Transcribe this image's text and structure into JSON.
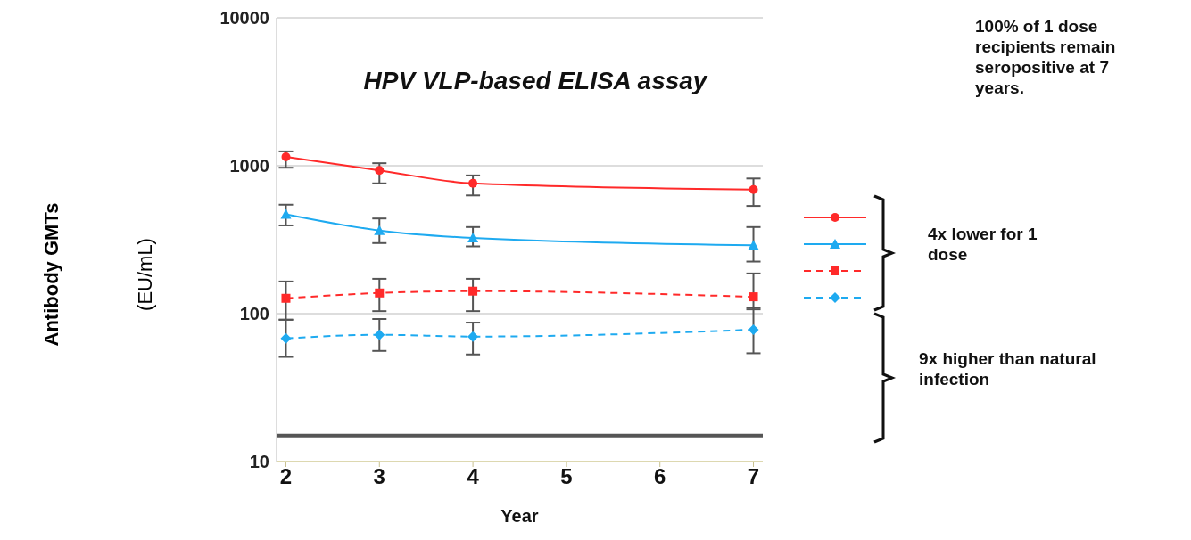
{
  "chart_data": {
    "type": "line",
    "title": "HPV VLP-based ELISA assay",
    "xlabel": "Year",
    "ylabel": "Antibody GMTs\n(EU/mL)",
    "x": [
      2,
      3,
      4,
      7
    ],
    "series": [
      {
        "color": "#ff2a2a",
        "values": [
          1150,
          930,
          760,
          690
        ],
        "errors": [
          [
            970,
            1250
          ],
          [
            760,
            1040
          ],
          [
            630,
            860
          ],
          [
            535,
            820
          ]
        ],
        "marker": "circle",
        "line_style": "solid"
      },
      {
        "color": "#1eaaf0",
        "values": [
          470,
          365,
          325,
          290
        ],
        "errors": [
          [
            395,
            545
          ],
          [
            300,
            440
          ],
          [
            285,
            385
          ],
          [
            225,
            385
          ]
        ],
        "marker": "triangle",
        "line_style": "solid"
      },
      {
        "color": "#ff2a2a",
        "values": [
          127,
          138,
          142,
          130
        ],
        "errors": [
          [
            91,
            165
          ],
          [
            104,
            172
          ],
          [
            104,
            172
          ],
          [
            107,
            187
          ]
        ],
        "marker": "square",
        "line_style": "dashed"
      },
      {
        "color": "#1eaaf0",
        "values": [
          68,
          72,
          70,
          78
        ],
        "errors": [
          [
            51,
            91
          ],
          [
            56,
            92
          ],
          [
            53,
            87
          ],
          [
            54,
            110
          ]
        ],
        "marker": "diamond",
        "line_style": "dashed"
      }
    ],
    "log": "y",
    "xlim": [
      1.9,
      7.1
    ],
    "xticks": [
      2,
      3,
      4,
      5,
      6,
      7
    ],
    "ylim": [
      10,
      10000
    ],
    "yticks": [
      10,
      100,
      1000,
      10000
    ],
    "grid": "y",
    "ref_lines": [
      {
        "axis": "y",
        "value": 15,
        "color": "#555555"
      }
    ],
    "annotations": [
      "100% of 1 dose recipients remain seropositive at 7 years.",
      "4x lower for 1 dose",
      "9x higher than natural infection"
    ]
  }
}
